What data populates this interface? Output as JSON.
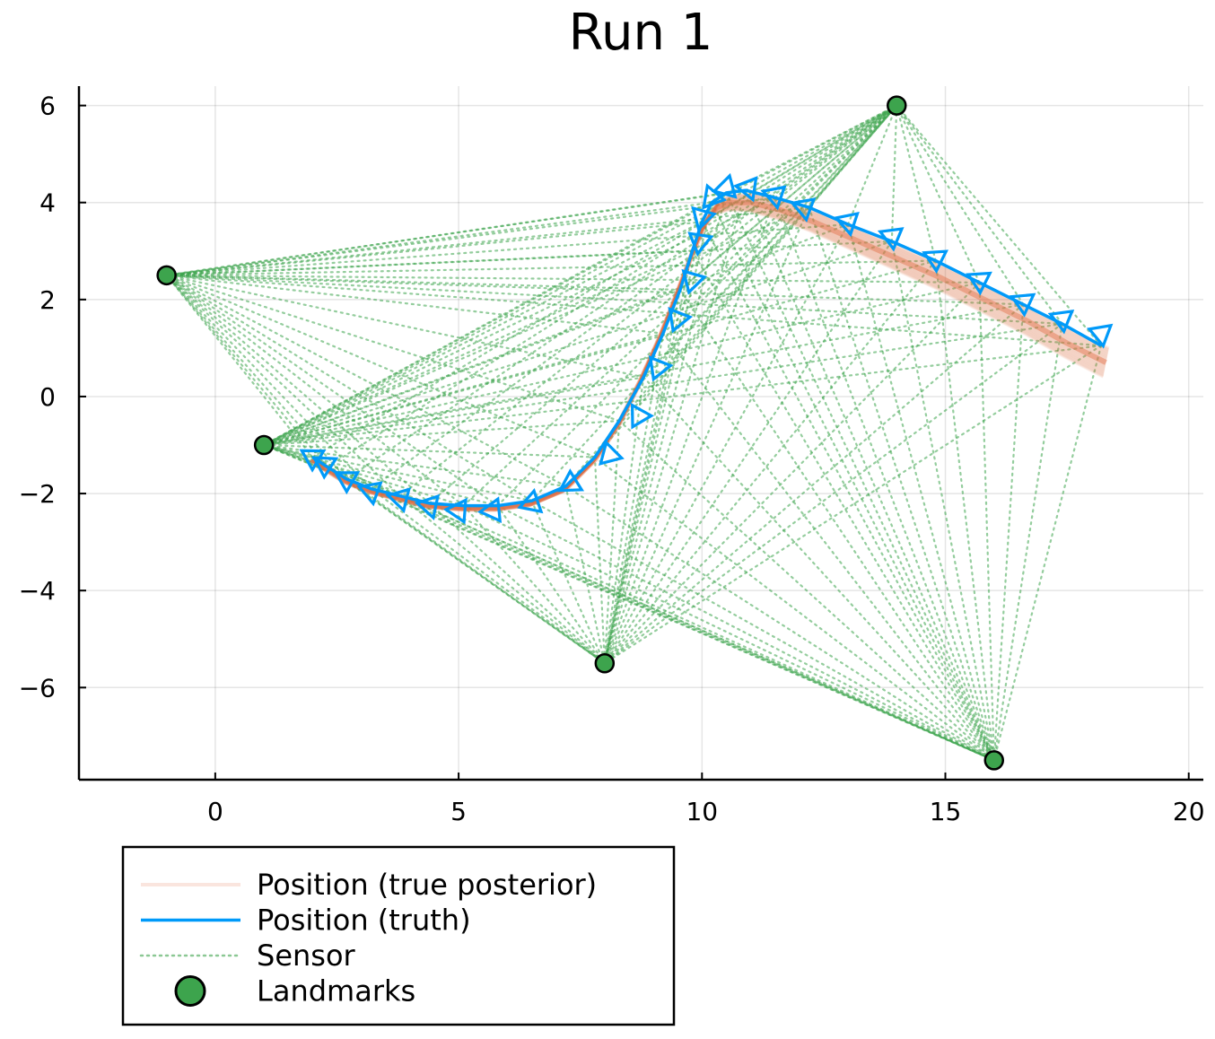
{
  "chart_data": {
    "type": "line",
    "title": "Run 1",
    "xlabel": "",
    "ylabel": "",
    "xlim": [
      -2.8,
      20.3
    ],
    "ylim": [
      -7.9,
      6.4
    ],
    "xticks": [
      0,
      5,
      10,
      15,
      20
    ],
    "yticks": [
      -6,
      -4,
      -2,
      0,
      2,
      4,
      6
    ],
    "x_tick_labels": [
      "0",
      "5",
      "10",
      "15",
      "20"
    ],
    "y_tick_labels": [
      "−6",
      "−4",
      "−2",
      "0",
      "2",
      "4",
      "6"
    ],
    "grid": true,
    "legend_position": "bottom-left outside",
    "colors": {
      "posterior": "#e26f46",
      "truth": "#009af9",
      "sensor": "#3da44d",
      "landmark": "#3da44d"
    },
    "landmarks": {
      "name": "Landmarks",
      "points": [
        {
          "x": -1,
          "y": 2.5
        },
        {
          "x": 1,
          "y": -1
        },
        {
          "x": 8,
          "y": -5.5
        },
        {
          "x": 14,
          "y": 6
        },
        {
          "x": 16,
          "y": -7.5
        }
      ]
    },
    "series": [
      {
        "name": "Position (truth)",
        "style": "solid line with triangle heading markers",
        "points": [
          {
            "x": 2.0,
            "y": -1.25
          },
          {
            "x": 2.3,
            "y": -1.45
          },
          {
            "x": 2.7,
            "y": -1.7
          },
          {
            "x": 3.2,
            "y": -1.9
          },
          {
            "x": 3.8,
            "y": -2.05
          },
          {
            "x": 4.4,
            "y": -2.2
          },
          {
            "x": 5.1,
            "y": -2.25
          },
          {
            "x": 5.8,
            "y": -2.25
          },
          {
            "x": 6.5,
            "y": -2.15
          },
          {
            "x": 7.2,
            "y": -1.85
          },
          {
            "x": 7.8,
            "y": -1.25
          },
          {
            "x": 8.3,
            "y": -0.5
          },
          {
            "x": 8.8,
            "y": 0.4
          },
          {
            "x": 9.2,
            "y": 1.3
          },
          {
            "x": 9.55,
            "y": 2.2
          },
          {
            "x": 9.8,
            "y": 3.0
          },
          {
            "x": 10.0,
            "y": 3.6
          },
          {
            "x": 10.2,
            "y": 4.0
          },
          {
            "x": 10.5,
            "y": 4.2
          },
          {
            "x": 10.9,
            "y": 4.25
          },
          {
            "x": 11.5,
            "y": 4.1
          },
          {
            "x": 12.2,
            "y": 3.9
          },
          {
            "x": 13.0,
            "y": 3.55
          },
          {
            "x": 13.9,
            "y": 3.2
          },
          {
            "x": 14.8,
            "y": 2.8
          },
          {
            "x": 15.7,
            "y": 2.35
          },
          {
            "x": 16.6,
            "y": 1.9
          },
          {
            "x": 17.4,
            "y": 1.5
          },
          {
            "x": 18.2,
            "y": 1.05
          }
        ],
        "markers": [
          {
            "x": 2.0,
            "y": -1.25
          },
          {
            "x": 2.25,
            "y": -1.4
          },
          {
            "x": 2.7,
            "y": -1.7
          },
          {
            "x": 3.2,
            "y": -1.95
          },
          {
            "x": 3.8,
            "y": -2.1
          },
          {
            "x": 4.4,
            "y": -2.25
          },
          {
            "x": 5.0,
            "y": -2.35
          },
          {
            "x": 5.7,
            "y": -2.35
          },
          {
            "x": 6.5,
            "y": -2.2
          },
          {
            "x": 7.3,
            "y": -1.8
          },
          {
            "x": 8.1,
            "y": -1.2
          },
          {
            "x": 8.7,
            "y": -0.4
          },
          {
            "x": 9.1,
            "y": 0.6
          },
          {
            "x": 9.5,
            "y": 1.6
          },
          {
            "x": 9.8,
            "y": 2.4
          },
          {
            "x": 9.95,
            "y": 3.2
          },
          {
            "x": 10.0,
            "y": 3.7
          },
          {
            "x": 10.2,
            "y": 4.1
          },
          {
            "x": 10.5,
            "y": 4.3
          },
          {
            "x": 10.95,
            "y": 4.3
          },
          {
            "x": 11.5,
            "y": 4.15
          },
          {
            "x": 12.1,
            "y": 3.9
          },
          {
            "x": 13.0,
            "y": 3.6
          },
          {
            "x": 13.9,
            "y": 3.3
          },
          {
            "x": 14.8,
            "y": 2.85
          },
          {
            "x": 15.7,
            "y": 2.4
          },
          {
            "x": 16.6,
            "y": 1.95
          },
          {
            "x": 17.4,
            "y": 1.6
          },
          {
            "x": 18.2,
            "y": 1.3
          }
        ]
      },
      {
        "name": "Position (true posterior)",
        "style": "bundle of faint lines",
        "points": [
          {
            "x": 2.0,
            "y": -1.3
          },
          {
            "x": 2.3,
            "y": -1.5
          },
          {
            "x": 2.7,
            "y": -1.75
          },
          {
            "x": 3.2,
            "y": -1.95
          },
          {
            "x": 3.8,
            "y": -2.1
          },
          {
            "x": 4.4,
            "y": -2.25
          },
          {
            "x": 5.1,
            "y": -2.3
          },
          {
            "x": 5.8,
            "y": -2.3
          },
          {
            "x": 6.5,
            "y": -2.2
          },
          {
            "x": 7.2,
            "y": -1.9
          },
          {
            "x": 7.8,
            "y": -1.3
          },
          {
            "x": 8.3,
            "y": -0.55
          },
          {
            "x": 8.75,
            "y": 0.35
          },
          {
            "x": 9.15,
            "y": 1.25
          },
          {
            "x": 9.5,
            "y": 2.15
          },
          {
            "x": 9.8,
            "y": 2.95
          },
          {
            "x": 10.05,
            "y": 3.55
          },
          {
            "x": 10.3,
            "y": 3.9
          },
          {
            "x": 10.6,
            "y": 4.0
          },
          {
            "x": 11.0,
            "y": 4.0
          },
          {
            "x": 11.6,
            "y": 3.85
          },
          {
            "x": 12.3,
            "y": 3.6
          },
          {
            "x": 13.1,
            "y": 3.25
          },
          {
            "x": 14.0,
            "y": 2.85
          },
          {
            "x": 14.9,
            "y": 2.45
          },
          {
            "x": 15.8,
            "y": 2.0
          },
          {
            "x": 16.7,
            "y": 1.55
          },
          {
            "x": 17.5,
            "y": 1.1
          },
          {
            "x": 18.3,
            "y": 0.7
          }
        ]
      },
      {
        "name": "Sensor",
        "style": "dotted lines from each position to each landmark"
      }
    ],
    "legend": [
      {
        "label": "Position (true posterior)",
        "kind": "line-faint"
      },
      {
        "label": "Position (truth)",
        "kind": "line"
      },
      {
        "label": "Sensor",
        "kind": "dotted"
      },
      {
        "label": "Landmarks",
        "kind": "marker"
      }
    ]
  }
}
